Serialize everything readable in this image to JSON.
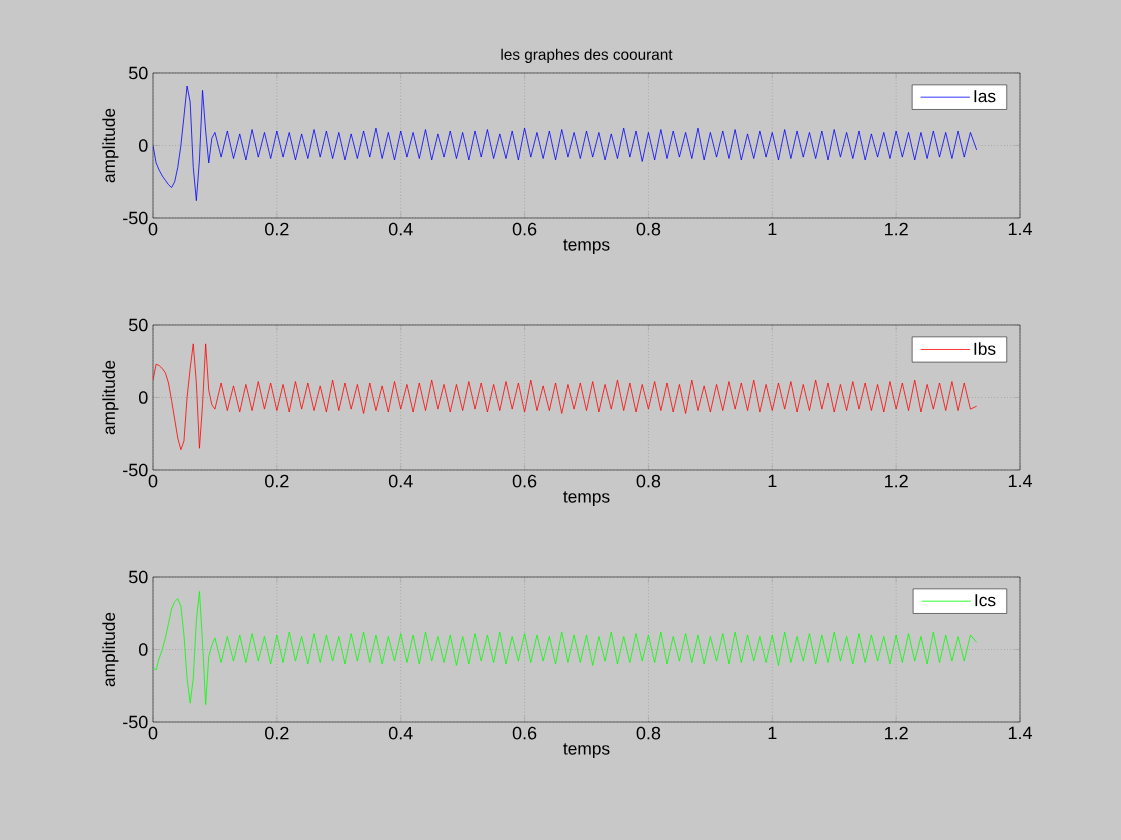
{
  "chart_data": [
    {
      "type": "line",
      "title": "les graphes des coourant",
      "xlabel": "temps",
      "ylabel": "amplitude",
      "xlim": [
        0,
        1.4
      ],
      "ylim": [
        -50,
        50
      ],
      "xticks": [
        0,
        0.2,
        0.4,
        0.6,
        0.8,
        1,
        1.2,
        1.4
      ],
      "yticks": [
        -50,
        0,
        50
      ],
      "grid": true,
      "legend": "top right",
      "x": [
        0,
        0.005,
        0.01,
        0.015,
        0.02,
        0.025,
        0.03,
        0.035,
        0.04,
        0.045,
        0.05,
        0.055,
        0.06,
        0.065,
        0.07,
        0.075,
        0.08,
        0.085,
        0.09,
        0.095,
        0.1,
        0.11,
        0.12,
        0.13,
        0.14,
        0.15,
        0.16,
        0.17,
        0.18,
        0.19,
        0.2,
        0.21,
        0.22,
        0.23,
        0.24,
        0.25,
        0.26,
        0.27,
        0.28,
        0.29,
        0.3,
        0.31,
        0.32,
        0.33,
        0.34,
        0.35,
        0.36,
        0.37,
        0.38,
        0.39,
        0.4,
        0.41,
        0.42,
        0.43,
        0.44,
        0.45,
        0.46,
        0.47,
        0.48,
        0.49,
        0.5,
        0.51,
        0.52,
        0.53,
        0.54,
        0.55,
        0.56,
        0.57,
        0.58,
        0.59,
        0.6,
        0.61,
        0.62,
        0.63,
        0.64,
        0.65,
        0.66,
        0.67,
        0.68,
        0.69,
        0.7,
        0.71,
        0.72,
        0.73,
        0.74,
        0.75,
        0.76,
        0.77,
        0.78,
        0.79,
        0.8,
        0.81,
        0.82,
        0.83,
        0.84,
        0.85,
        0.86,
        0.87,
        0.88,
        0.89,
        0.9,
        0.91,
        0.92,
        0.93,
        0.94,
        0.95,
        0.96,
        0.97,
        0.98,
        0.99,
        1,
        1.01,
        1.02,
        1.03,
        1.04,
        1.05,
        1.06,
        1.07,
        1.08,
        1.09,
        1.1,
        1.11,
        1.12,
        1.13,
        1.14,
        1.15,
        1.16,
        1.17,
        1.18,
        1.19,
        1.2,
        1.21,
        1.22,
        1.23,
        1.24,
        1.25,
        1.26,
        1.27,
        1.28,
        1.29,
        1.3,
        1.31,
        1.32,
        1.33
      ],
      "series": [
        {
          "name": "Ias",
          "color": "#0000ff",
          "values": [
            0,
            -12,
            -17,
            -21,
            -24,
            -27,
            -29,
            -25,
            -15,
            0,
            20,
            41,
            30,
            -15,
            -38,
            -10,
            38,
            10,
            -12,
            5,
            9,
            -8,
            10,
            -9,
            8,
            -10,
            11,
            -8,
            9,
            -9,
            10,
            -8,
            9,
            -10,
            8,
            -9,
            11,
            -8,
            10,
            -9,
            9,
            -10,
            8,
            -9,
            10,
            -8,
            12,
            -9,
            9,
            -10,
            10,
            -8,
            9,
            -9,
            11,
            -10,
            8,
            -8,
            10,
            -9,
            9,
            -10,
            10,
            -8,
            11,
            -9,
            8,
            -9,
            10,
            -10,
            12,
            -8,
            9,
            -9,
            10,
            -10,
            11,
            -8,
            9,
            -9,
            10,
            -8,
            9,
            -10,
            8,
            -9,
            12,
            -8,
            10,
            -11,
            9,
            -10,
            11,
            -9,
            10,
            -8,
            9,
            -9,
            12,
            -10,
            9,
            -8,
            10,
            -9,
            11,
            -10,
            8,
            -9,
            10,
            -8,
            9,
            -10,
            11,
            -9,
            10,
            -8,
            9,
            -9,
            10,
            -10,
            11,
            -8,
            9,
            -9,
            10,
            -10,
            8,
            -8,
            9,
            -9,
            10,
            -8,
            9,
            -10,
            9,
            -9,
            10,
            -8,
            9,
            -9,
            10,
            -8,
            9,
            -3
          ]
        }
      ]
    },
    {
      "type": "line",
      "xlabel": "temps",
      "ylabel": "amplitude",
      "xlim": [
        0,
        1.4
      ],
      "ylim": [
        -50,
        50
      ],
      "xticks": [
        0,
        0.2,
        0.4,
        0.6,
        0.8,
        1,
        1.2,
        1.4
      ],
      "yticks": [
        -50,
        0,
        50
      ],
      "grid": true,
      "legend": "top right",
      "x": [
        0,
        0.005,
        0.01,
        0.015,
        0.02,
        0.025,
        0.03,
        0.035,
        0.04,
        0.045,
        0.05,
        0.055,
        0.06,
        0.065,
        0.07,
        0.075,
        0.08,
        0.085,
        0.09,
        0.095,
        0.1,
        0.11,
        0.12,
        0.13,
        0.14,
        0.15,
        0.16,
        0.17,
        0.18,
        0.19,
        0.2,
        0.21,
        0.22,
        0.23,
        0.24,
        0.25,
        0.26,
        0.27,
        0.28,
        0.29,
        0.3,
        0.31,
        0.32,
        0.33,
        0.34,
        0.35,
        0.36,
        0.37,
        0.38,
        0.39,
        0.4,
        0.41,
        0.42,
        0.43,
        0.44,
        0.45,
        0.46,
        0.47,
        0.48,
        0.49,
        0.5,
        0.51,
        0.52,
        0.53,
        0.54,
        0.55,
        0.56,
        0.57,
        0.58,
        0.59,
        0.6,
        0.61,
        0.62,
        0.63,
        0.64,
        0.65,
        0.66,
        0.67,
        0.68,
        0.69,
        0.7,
        0.71,
        0.72,
        0.73,
        0.74,
        0.75,
        0.76,
        0.77,
        0.78,
        0.79,
        0.8,
        0.81,
        0.82,
        0.83,
        0.84,
        0.85,
        0.86,
        0.87,
        0.88,
        0.89,
        0.9,
        0.91,
        0.92,
        0.93,
        0.94,
        0.95,
        0.96,
        0.97,
        0.98,
        0.99,
        1,
        1.01,
        1.02,
        1.03,
        1.04,
        1.05,
        1.06,
        1.07,
        1.08,
        1.09,
        1.1,
        1.11,
        1.12,
        1.13,
        1.14,
        1.15,
        1.16,
        1.17,
        1.18,
        1.19,
        1.2,
        1.21,
        1.22,
        1.23,
        1.24,
        1.25,
        1.26,
        1.27,
        1.28,
        1.29,
        1.3,
        1.31,
        1.32,
        1.33
      ],
      "series": [
        {
          "name": "Ibs",
          "color": "#ff0000",
          "values": [
            12,
            23,
            22,
            20,
            17,
            10,
            -2,
            -15,
            -28,
            -36,
            -30,
            0,
            20,
            37,
            10,
            -35,
            -5,
            37,
            5,
            -5,
            -8,
            10,
            -9,
            8,
            -10,
            9,
            -9,
            11,
            -8,
            10,
            -9,
            9,
            -10,
            11,
            -8,
            10,
            -9,
            8,
            -10,
            12,
            -9,
            10,
            -8,
            9,
            -11,
            10,
            -9,
            8,
            -10,
            11,
            -8,
            9,
            -10,
            10,
            -9,
            12,
            -8,
            9,
            -10,
            9,
            -9,
            11,
            -8,
            10,
            -10,
            9,
            -9,
            11,
            -8,
            10,
            -10,
            12,
            -9,
            8,
            -9,
            10,
            -11,
            9,
            -8,
            10,
            -9,
            11,
            -10,
            9,
            -8,
            12,
            -9,
            10,
            -10,
            9,
            -8,
            11,
            -9,
            10,
            -10,
            9,
            -11,
            12,
            -9,
            8,
            -10,
            9,
            -9,
            11,
            -8,
            10,
            -9,
            12,
            -10,
            9,
            -9,
            10,
            -8,
            11,
            -10,
            9,
            -9,
            12,
            -8,
            10,
            -10,
            9,
            -9,
            11,
            -8,
            10,
            -9,
            9,
            -10,
            11,
            -8,
            10,
            -9,
            12,
            -10,
            9,
            -8,
            10,
            -9,
            11,
            -9,
            10,
            -8,
            -6
          ]
        }
      ]
    },
    {
      "type": "line",
      "xlabel": "temps",
      "ylabel": "amplitude",
      "xlim": [
        0,
        1.4
      ],
      "ylim": [
        -50,
        50
      ],
      "xticks": [
        0,
        0.2,
        0.4,
        0.6,
        0.8,
        1,
        1.2,
        1.4
      ],
      "yticks": [
        -50,
        0,
        50
      ],
      "grid": true,
      "legend": "top right",
      "x": [
        0,
        0.005,
        0.01,
        0.015,
        0.02,
        0.025,
        0.03,
        0.035,
        0.04,
        0.045,
        0.05,
        0.055,
        0.06,
        0.065,
        0.07,
        0.075,
        0.08,
        0.085,
        0.09,
        0.095,
        0.1,
        0.11,
        0.12,
        0.13,
        0.14,
        0.15,
        0.16,
        0.17,
        0.18,
        0.19,
        0.2,
        0.21,
        0.22,
        0.23,
        0.24,
        0.25,
        0.26,
        0.27,
        0.28,
        0.29,
        0.3,
        0.31,
        0.32,
        0.33,
        0.34,
        0.35,
        0.36,
        0.37,
        0.38,
        0.39,
        0.4,
        0.41,
        0.42,
        0.43,
        0.44,
        0.45,
        0.46,
        0.47,
        0.48,
        0.49,
        0.5,
        0.51,
        0.52,
        0.53,
        0.54,
        0.55,
        0.56,
        0.57,
        0.58,
        0.59,
        0.6,
        0.61,
        0.62,
        0.63,
        0.64,
        0.65,
        0.66,
        0.67,
        0.68,
        0.69,
        0.7,
        0.71,
        0.72,
        0.73,
        0.74,
        0.75,
        0.76,
        0.77,
        0.78,
        0.79,
        0.8,
        0.81,
        0.82,
        0.83,
        0.84,
        0.85,
        0.86,
        0.87,
        0.88,
        0.89,
        0.9,
        0.91,
        0.92,
        0.93,
        0.94,
        0.95,
        0.96,
        0.97,
        0.98,
        0.99,
        1,
        1.01,
        1.02,
        1.03,
        1.04,
        1.05,
        1.06,
        1.07,
        1.08,
        1.09,
        1.1,
        1.11,
        1.12,
        1.13,
        1.14,
        1.15,
        1.16,
        1.17,
        1.18,
        1.19,
        1.2,
        1.21,
        1.22,
        1.23,
        1.24,
        1.25,
        1.26,
        1.27,
        1.28,
        1.29,
        1.3,
        1.31,
        1.32,
        1.33
      ],
      "series": [
        {
          "name": "Ics",
          "color": "#00ff00",
          "values": [
            -13,
            -14,
            -6,
            0,
            8,
            18,
            28,
            33,
            35,
            30,
            10,
            -20,
            -37,
            -20,
            20,
            40,
            5,
            -38,
            -5,
            3,
            8,
            -9,
            9,
            -8,
            10,
            -9,
            11,
            -8,
            9,
            -10,
            10,
            -9,
            12,
            -8,
            9,
            -10,
            11,
            -9,
            10,
            -8,
            9,
            -10,
            11,
            -8,
            12,
            -9,
            10,
            -10,
            9,
            -8,
            11,
            -9,
            10,
            -10,
            12,
            -8,
            9,
            -9,
            10,
            -11,
            9,
            -10,
            11,
            -8,
            10,
            -9,
            12,
            -10,
            9,
            -8,
            11,
            -9,
            10,
            -8,
            9,
            -10,
            12,
            -9,
            10,
            -9,
            10,
            -11,
            9,
            -8,
            12,
            -10,
            9,
            -9,
            11,
            -8,
            10,
            -9,
            12,
            -10,
            9,
            -8,
            11,
            -9,
            10,
            -10,
            9,
            -8,
            11,
            -10,
            12,
            -9,
            10,
            -8,
            9,
            -9,
            10,
            -11,
            12,
            -9,
            9,
            -8,
            11,
            -10,
            10,
            -9,
            12,
            -8,
            9,
            -10,
            11,
            -9,
            10,
            -8,
            9,
            -10,
            10,
            -9,
            11,
            -8,
            9,
            -10,
            12,
            -9,
            10,
            -8,
            9,
            -8,
            10,
            5
          ]
        }
      ]
    }
  ]
}
